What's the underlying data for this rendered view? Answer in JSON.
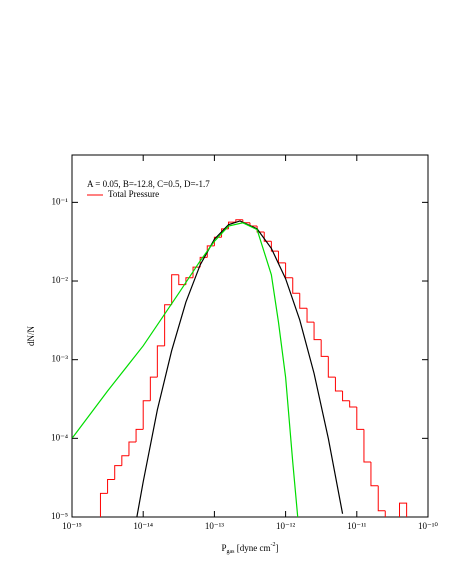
{
  "chart_data": {
    "type": "line",
    "log_x": true,
    "log_y": true,
    "x_label": [
      "P",
      "gas",
      " [dyne cm",
      "-2",
      "]"
    ],
    "y_label": "dN/N",
    "annotation": "A = 0.05, B=-12.8, C=0.5, D=-1.7",
    "legend": "upper left",
    "xlim": [
      1e-15,
      1e-10
    ],
    "ylim": [
      1e-05,
      0.4
    ],
    "xticks": [
      {
        "value": 1e-15,
        "label": "10⁻¹⁵"
      },
      {
        "value": 1e-14,
        "label": "10⁻¹⁴"
      },
      {
        "value": 1e-13,
        "label": "10⁻¹³"
      },
      {
        "value": 1e-12,
        "label": "10⁻¹²"
      },
      {
        "value": 1e-11,
        "label": "10⁻¹¹"
      },
      {
        "value": 1e-10,
        "label": "10⁻¹⁰"
      }
    ],
    "yticks": [
      {
        "value": 1e-05,
        "label": "10⁻⁵"
      },
      {
        "value": 0.0001,
        "label": "10⁻⁴"
      },
      {
        "value": 0.001,
        "label": "10⁻³"
      },
      {
        "value": 0.01,
        "label": "10⁻²"
      },
      {
        "value": 0.1,
        "label": "10⁻¹"
      }
    ],
    "histogram": {
      "name": "Total Pressure",
      "color": "#ff0000",
      "bins": [
        2.51e-15,
        3.16e-15,
        3.98e-15,
        5.01e-15,
        6.31e-15,
        7.94e-15,
        1e-14,
        1.26e-14,
        1.58e-14,
        2e-14,
        2.51e-14,
        3.16e-14,
        3.98e-14,
        5.01e-14,
        6.31e-14,
        7.94e-14,
        1e-13,
        1.26e-13,
        1.58e-13,
        2e-13,
        2.51e-13,
        3.16e-13,
        3.98e-13,
        5.01e-13,
        6.31e-13,
        7.94e-13,
        1e-12,
        1.26e-12,
        1.58e-12,
        2e-12,
        2.51e-12,
        3.16e-12,
        3.98e-12,
        5.01e-12,
        6.31e-12,
        7.94e-12,
        1e-11,
        1.26e-11,
        1.58e-11,
        2e-11,
        2.51e-11,
        3.16e-11,
        3.98e-11,
        5.01e-11
      ],
      "values": [
        2e-05,
        3e-05,
        4.5e-05,
        6e-05,
        9e-05,
        0.00013,
        0.0003,
        0.0006,
        0.0015,
        0.005,
        0.012,
        0.009,
        0.011,
        0.015,
        0.02,
        0.028,
        0.036,
        0.046,
        0.056,
        0.06,
        0.055,
        0.05,
        0.042,
        0.032,
        0.024,
        0.017,
        0.011,
        0.007,
        0.0045,
        0.003,
        0.0018,
        0.0011,
        0.0006,
        0.0004,
        0.0003,
        0.00025,
        0.00013,
        5e-05,
        2.5e-05,
        1.2e-05,
        0,
        0,
        1.5e-05
      ]
    },
    "series": [
      {
        "color": "#000000",
        "x": [
          7.94e-15,
          1e-14,
          1.58e-14,
          2.51e-14,
          3.98e-14,
          6.31e-14,
          1e-13,
          1.58e-13,
          2.29e-13,
          3.98e-13,
          6.31e-13,
          1e-12,
          1.58e-12,
          2.51e-12,
          3.98e-12,
          6.31e-12
        ],
        "values": [
          8.8e-06,
          2.8e-05,
          0.00023,
          0.0013,
          0.0054,
          0.016,
          0.034,
          0.052,
          0.058,
          0.046,
          0.026,
          0.0107,
          0.0032,
          0.00067,
          0.0001,
          1.1e-05
        ]
      },
      {
        "color": "#00dd00",
        "x": [
          1e-15,
          3.16e-15,
          1e-14,
          3.16e-14,
          6.31e-14,
          1e-13,
          1.58e-13,
          2.51e-13,
          3.98e-13,
          6.31e-13,
          7.94e-13,
          1e-12,
          1.26e-12,
          1.48e-12
        ],
        "values": [
          0.0001,
          0.0004,
          0.0015,
          0.007,
          0.018,
          0.032,
          0.05,
          0.055,
          0.045,
          0.012,
          0.003,
          0.0006,
          5e-05,
          1e-05
        ]
      }
    ]
  }
}
